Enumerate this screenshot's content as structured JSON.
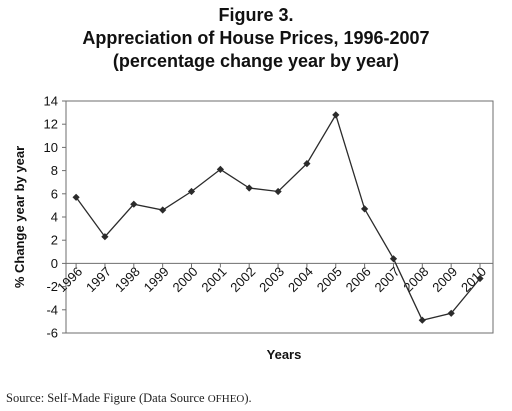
{
  "figure": {
    "label": "Figure 3.",
    "title": "Appreciation of House Prices, 1996-2007",
    "subtitle": "(percentage change year by year)"
  },
  "source": {
    "prefix": "Source: Self-Made Figure (Data Source ",
    "org": "OFHEO",
    "suffix": ")."
  },
  "chart_data": {
    "type": "line",
    "title": "Appreciation of House Prices, 1996-2007",
    "xlabel": "Years",
    "ylabel": "% Change year by year",
    "categories": [
      "1996",
      "1997",
      "1998",
      "1999",
      "2000",
      "2001",
      "2002",
      "2003",
      "2004",
      "2005",
      "2006",
      "2007",
      "2008",
      "2009",
      "2010"
    ],
    "series": [
      {
        "values": [
          5.7,
          2.3,
          5.1,
          4.6,
          6.2,
          8.1,
          6.5,
          6.2,
          8.6,
          12.8,
          4.7,
          0.4,
          -4.9,
          -4.3,
          -1.3
        ],
        "color": "#2b2b2b",
        "marker": "diamond"
      }
    ],
    "ylim": [
      -6,
      14
    ],
    "yticks": [
      14,
      12,
      10,
      8,
      6,
      4,
      2,
      0,
      -2,
      -4,
      -6
    ],
    "grid": false,
    "legend": "none"
  }
}
